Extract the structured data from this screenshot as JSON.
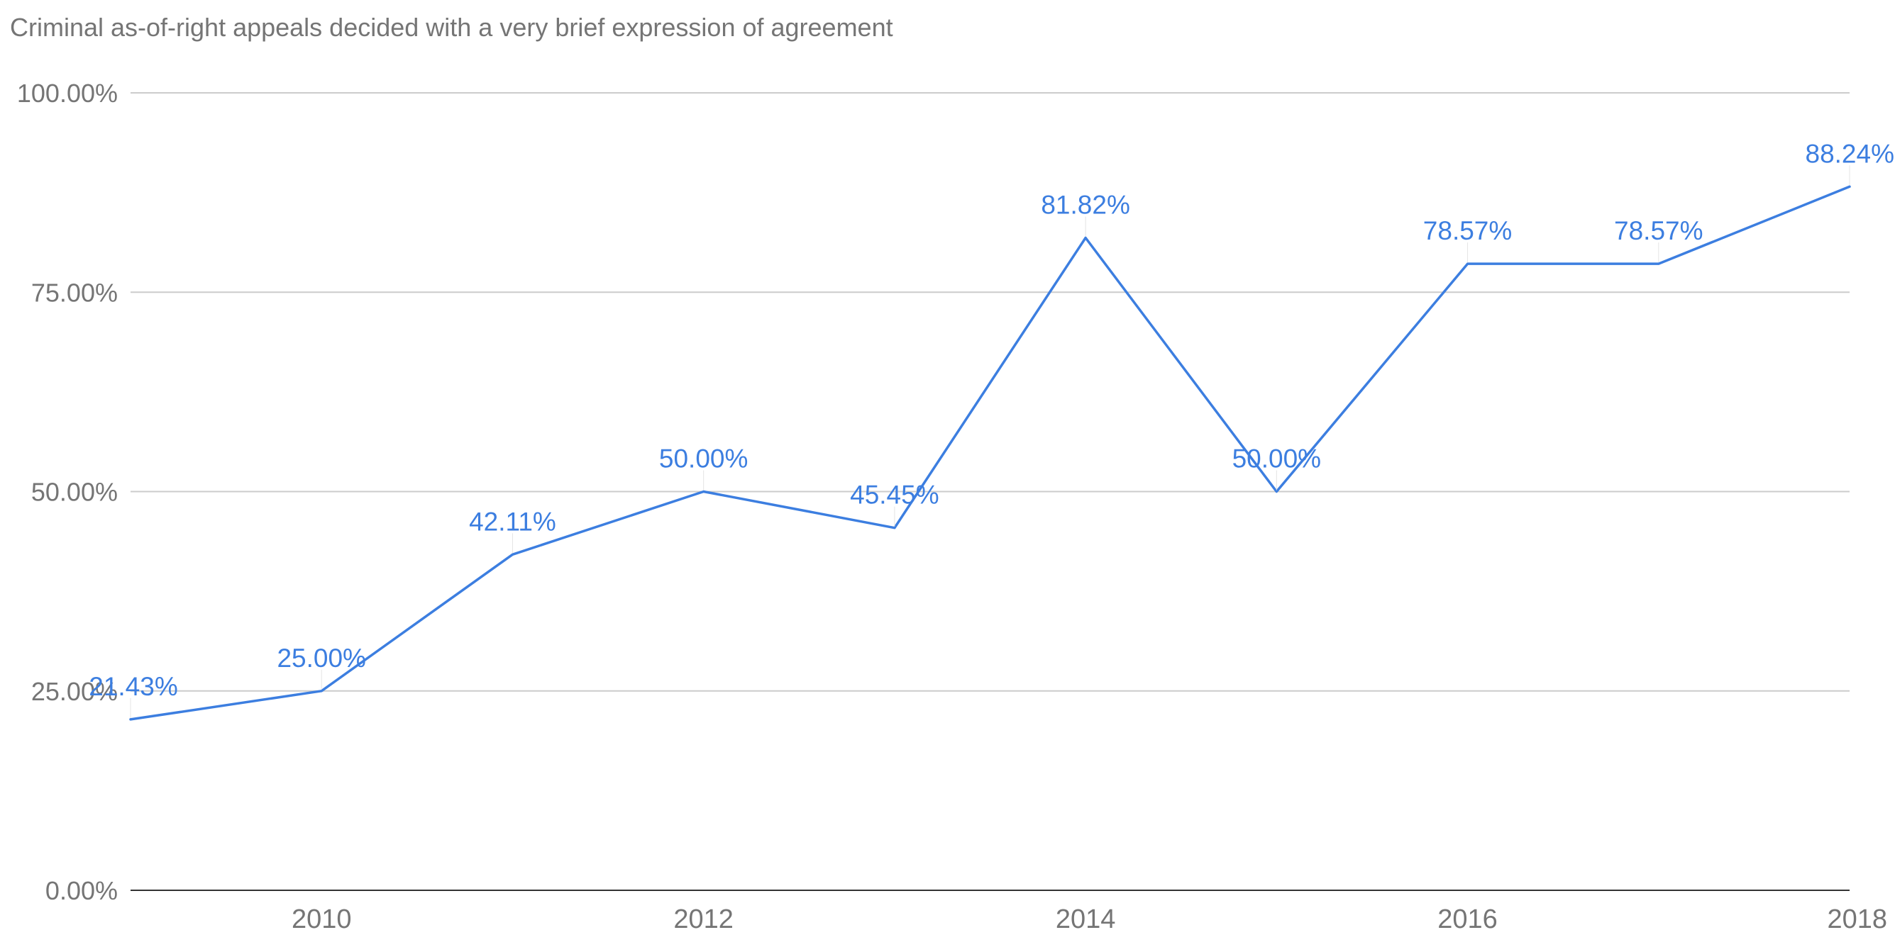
{
  "chart_data": {
    "type": "line",
    "title": "Criminal as-of-right appeals decided with a very brief expression of agreement",
    "xlabel": "",
    "ylabel": "",
    "x": [
      2009,
      2010,
      2011,
      2012,
      2013,
      2014,
      2015,
      2016,
      2017,
      2018
    ],
    "xlim": [
      2009,
      2018
    ],
    "x_ticks": [
      "2010",
      "2012",
      "2014",
      "2016",
      "2018"
    ],
    "ylim": [
      0,
      100
    ],
    "y_ticks": [
      "0.00%",
      "25.00%",
      "50.00%",
      "75.00%",
      "100.00%"
    ],
    "grid": true,
    "legend": "none",
    "color": "#3c7ee0",
    "series": [
      {
        "values": [
          21.43,
          25.0,
          42.11,
          50.0,
          45.45,
          81.82,
          50.0,
          78.57,
          78.57,
          88.24
        ],
        "labels": [
          "21.43%",
          "25.00%",
          "42.11%",
          "50.00%",
          "45.45%",
          "81.82%",
          "50.00%",
          "78.57%",
          "78.57%",
          "88.24%"
        ]
      }
    ]
  }
}
